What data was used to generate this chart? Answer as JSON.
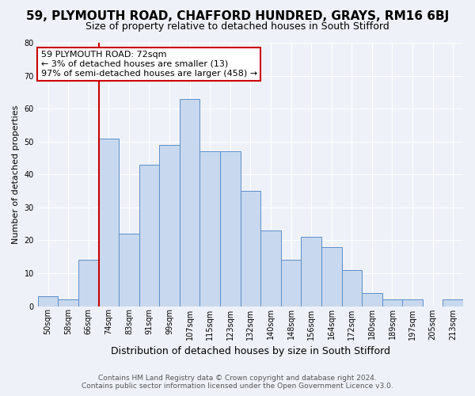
{
  "title_line1": "59, PLYMOUTH ROAD, CHAFFORD HUNDRED, GRAYS, RM16 6BJ",
  "title_line2": "Size of property relative to detached houses in South Stifford",
  "xlabel": "Distribution of detached houses by size in South Stifford",
  "ylabel": "Number of detached properties",
  "bar_labels": [
    "50sqm",
    "58sqm",
    "66sqm",
    "74sqm",
    "83sqm",
    "91sqm",
    "99sqm",
    "107sqm",
    "115sqm",
    "123sqm",
    "132sqm",
    "140sqm",
    "148sqm",
    "156sqm",
    "164sqm",
    "172sqm",
    "180sqm",
    "189sqm",
    "197sqm",
    "205sqm",
    "213sqm"
  ],
  "bar_heights": [
    3,
    2,
    14,
    51,
    22,
    43,
    49,
    63,
    47,
    47,
    35,
    23,
    14,
    21,
    18,
    11,
    4,
    2,
    2,
    0,
    2
  ],
  "bar_color": "#c8d8ee",
  "bar_edge_color": "#5b8fc9",
  "vline_x_index": 3,
  "vline_color": "#cc0000",
  "ylim": [
    0,
    80
  ],
  "yticks": [
    0,
    10,
    20,
    30,
    40,
    50,
    60,
    70,
    80
  ],
  "annotation_title": "59 PLYMOUTH ROAD: 72sqm",
  "annotation_line1": "← 3% of detached houses are smaller (13)",
  "annotation_line2": "97% of semi-detached houses are larger (458) →",
  "annotation_box_color": "#ffffff",
  "annotation_box_edge": "#cc0000",
  "footer_line1": "Contains HM Land Registry data © Crown copyright and database right 2024.",
  "footer_line2": "Contains public sector information licensed under the Open Government Licence v3.0.",
  "background_color": "#eef2f8",
  "grid_color": "#ffffff",
  "title1_fontsize": 11,
  "title2_fontsize": 9,
  "xlabel_fontsize": 9,
  "ylabel_fontsize": 8,
  "tick_fontsize": 7,
  "ann_fontsize": 8,
  "footer_fontsize": 6.5
}
